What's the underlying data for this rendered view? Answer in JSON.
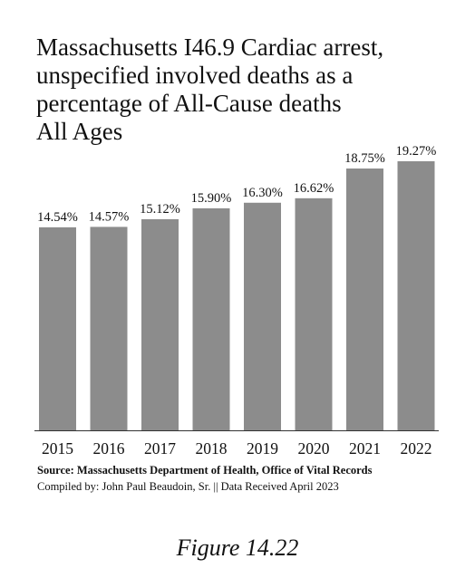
{
  "chart_data": {
    "type": "bar",
    "title_lines": [
      "Massachusetts I46.9 Cardiac arrest,",
      "unspecified involved deaths as a",
      "percentage of All-Cause deaths",
      "All Ages"
    ],
    "categories": [
      "2015",
      "2016",
      "2017",
      "2018",
      "2019",
      "2020",
      "2021",
      "2022"
    ],
    "values": [
      14.54,
      14.57,
      15.12,
      15.9,
      16.3,
      16.62,
      18.75,
      19.27
    ],
    "data_labels": [
      "14.54%",
      "14.57%",
      "15.12%",
      "15.90%",
      "16.30%",
      "16.62%",
      "18.75%",
      "19.27%"
    ],
    "xlabel": "",
    "ylabel": "",
    "ylim": [
      0,
      19.27
    ],
    "grid": false,
    "legend": "none",
    "bar_color": "#8c8c8c"
  },
  "source_text": "Source:  Massachusetts Department of Health, Office of Vital Records",
  "compiled_text": "Compiled by:  John Paul Beaudoin, Sr. || Data Received April 2023",
  "figure_caption": "Figure 14.22"
}
